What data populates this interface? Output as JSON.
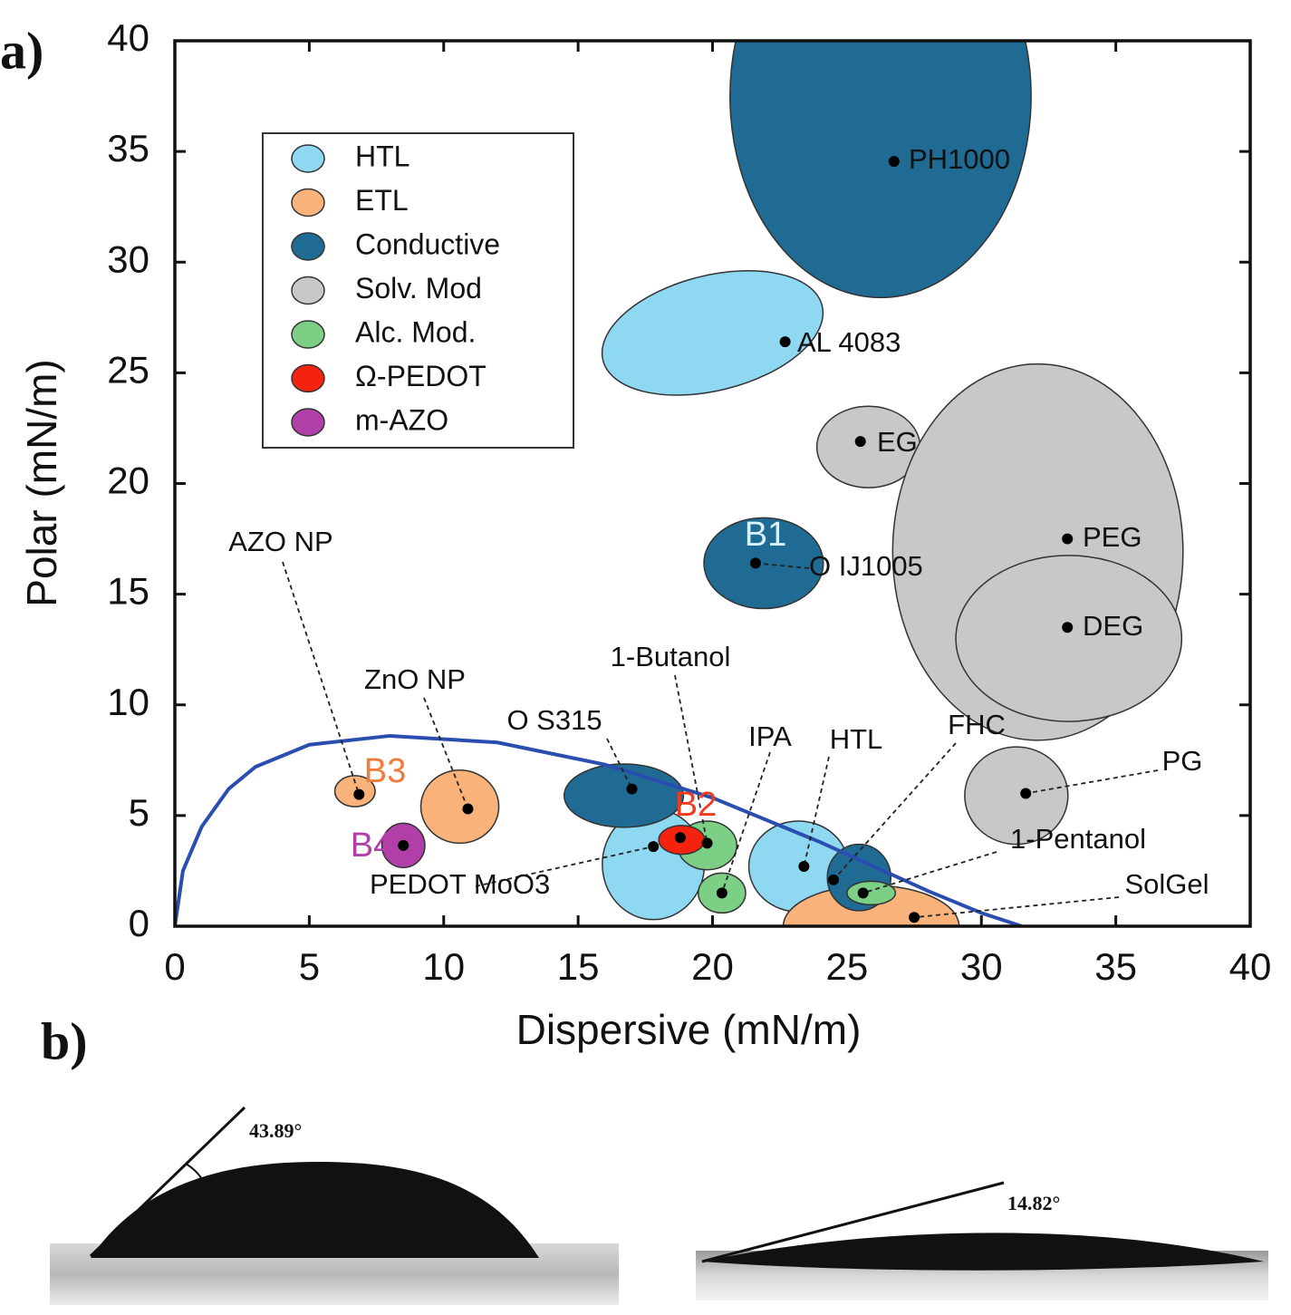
{
  "chart_data": {
    "type": "scatter",
    "panel_label": "a)",
    "xlabel": "Dispersive (mN/m)",
    "ylabel": "Polar (mN/m)",
    "xlim": [
      0,
      40
    ],
    "ylim": [
      0,
      40
    ],
    "xticks": [
      0,
      5,
      10,
      15,
      20,
      25,
      30,
      35,
      40
    ],
    "yticks": [
      0,
      5,
      10,
      15,
      20,
      25,
      30,
      35,
      40
    ],
    "series": [
      {
        "name": "HTL",
        "color": "#8fd8f2",
        "labels": [
          "AL 4083",
          "PEDOT MoO3",
          "HTL"
        ],
        "x": [
          22.7,
          17.8,
          23.4
        ],
        "values": [
          26.4,
          3.6,
          2.7
        ],
        "ex": [
          20.0,
          17.8,
          23.2
        ],
        "ey": [
          26.8,
          2.8,
          2.7
        ],
        "rx": [
          4.2,
          1.9,
          1.85
        ],
        "ry": [
          2.6,
          2.5,
          2.05
        ],
        "angle": [
          -14,
          0,
          0
        ]
      },
      {
        "name": "ETL",
        "color": "#f8b27a",
        "labels": [
          "AZO NP",
          "ZnO NP",
          "SolGel"
        ],
        "x": [
          6.85,
          10.9,
          27.5
        ],
        "values": [
          5.95,
          5.3,
          0.4
        ],
        "ex": [
          6.7,
          10.6,
          25.9
        ],
        "ey": [
          6.1,
          5.4,
          0
        ],
        "rx": [
          0.75,
          1.45,
          3.27
        ],
        "ry": [
          0.7,
          1.65,
          1.85
        ],
        "angle": [
          0,
          0,
          0
        ]
      },
      {
        "name": "Conductive",
        "color": "#1f6b94",
        "labels": [
          "PH1000",
          "O IJ1005",
          "O S315",
          "FHC"
        ],
        "x": [
          26.75,
          21.6,
          17.0,
          24.5
        ],
        "values": [
          34.55,
          16.4,
          6.2,
          2.1
        ],
        "ex": [
          26.25,
          21.9,
          16.7,
          25.45
        ],
        "ey": [
          37.5,
          16.4,
          5.9,
          2.2
        ],
        "rx": [
          5.6,
          2.22,
          2.22,
          1.18
        ],
        "ry": [
          9.1,
          2.05,
          1.43,
          1.5
        ],
        "angle": [
          0,
          0,
          0,
          0
        ]
      },
      {
        "name": "Solv. Mod",
        "color": "#c8c8c8",
        "labels": [
          "EG",
          "PEG",
          "DEG",
          "PG"
        ],
        "x": [
          25.5,
          33.2,
          33.2,
          31.65
        ],
        "values": [
          21.9,
          17.5,
          13.5,
          6.0
        ],
        "ex": [
          25.8,
          32.1,
          33.25,
          31.3
        ],
        "ey": [
          21.65,
          16.9,
          13.0,
          5.9
        ],
        "rx": [
          1.92,
          5.4,
          4.2,
          1.92
        ],
        "ry": [
          1.84,
          8.5,
          3.75,
          2.2
        ],
        "angle": [
          0,
          0,
          0,
          0
        ]
      },
      {
        "name": "Alc. Mod.",
        "color": "#7ccf84",
        "labels": [
          "1-Butanol",
          "IPA",
          "1-Pentanol"
        ],
        "x": [
          19.8,
          20.35,
          25.6
        ],
        "values": [
          3.75,
          1.5,
          1.5
        ],
        "ex": [
          19.8,
          20.35,
          25.9
        ],
        "ey": [
          3.65,
          1.5,
          1.5
        ],
        "rx": [
          1.1,
          0.88,
          0.9
        ],
        "ry": [
          1.1,
          0.9,
          0.53
        ],
        "angle": [
          0,
          0,
          0
        ]
      },
      {
        "name": "Ω-PEDOT",
        "color": "#f4230f",
        "labels": [
          null
        ],
        "x": [
          18.8
        ],
        "values": [
          4.0
        ],
        "ex": [
          18.85
        ],
        "ey": [
          3.9
        ],
        "rx": [
          0.85
        ],
        "ry": [
          0.65
        ],
        "angle": [
          0
        ]
      },
      {
        "name": "m-AZO",
        "color": "#b040a8",
        "labels": [
          null
        ],
        "x": [
          8.5
        ],
        "values": [
          3.65
        ],
        "ex": [
          8.5
        ],
        "ey": [
          3.65
        ],
        "rx": [
          0.8
        ],
        "ry": [
          1.0
        ],
        "angle": [
          0
        ]
      }
    ],
    "annotations": [
      "B1",
      "B2",
      "B3",
      "B4"
    ],
    "annotation_colors": [
      "#d8f3ff",
      "#f23b1c",
      "#f07a3a",
      "#b040a8"
    ],
    "curve": {
      "color": "#2a4db0",
      "x": [
        0,
        0.3,
        1,
        2,
        3,
        5,
        8,
        12,
        16,
        20,
        24,
        28,
        30,
        31.5
      ],
      "values": [
        0,
        2.5,
        4.5,
        6.2,
        7.2,
        8.2,
        8.6,
        8.3,
        7.3,
        5.8,
        3.8,
        1.6,
        0.6,
        0
      ]
    }
  },
  "panel_b": {
    "label": "b)",
    "angles": [
      "43.89°",
      "14.82°"
    ]
  }
}
